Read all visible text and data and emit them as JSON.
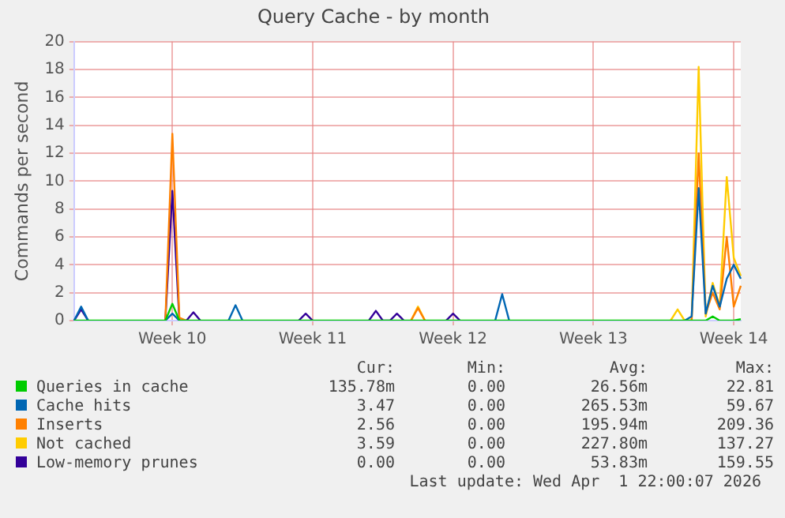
{
  "chart_data": {
    "type": "line",
    "title": "Query Cache - by month",
    "ylabel": "Commands per second",
    "categories": [
      null,
      null,
      null,
      null,
      null,
      null,
      null,
      null,
      null,
      null,
      null,
      null,
      null,
      null,
      "Week 10",
      null,
      null,
      null,
      null,
      null,
      null,
      null,
      null,
      null,
      null,
      null,
      null,
      null,
      null,
      null,
      null,
      null,
      null,
      null,
      "Week 11",
      null,
      null,
      null,
      null,
      null,
      null,
      null,
      null,
      null,
      null,
      null,
      null,
      null,
      null,
      null,
      null,
      null,
      null,
      null,
      "Week 12",
      null,
      null,
      null,
      null,
      null,
      null,
      null,
      null,
      null,
      null,
      null,
      null,
      null,
      null,
      null,
      null,
      null,
      null,
      null,
      "Week 13",
      null,
      null,
      null,
      null,
      null,
      null,
      null,
      null,
      null,
      null,
      null,
      null,
      null,
      null,
      null,
      null,
      null,
      null,
      null,
      "Week 14",
      null
    ],
    "ylim": [
      0,
      20
    ],
    "yticks": [
      0,
      2,
      4,
      6,
      8,
      10,
      12,
      14,
      16,
      18,
      20
    ],
    "grid": true,
    "legend": "bottom",
    "marker": "none",
    "line_style": "solid",
    "series": [
      {
        "name": "Queries in cache",
        "color": "#00cc00",
        "values": [
          0,
          0,
          0,
          0,
          0,
          0,
          0,
          0,
          0,
          0,
          0,
          0,
          0,
          0,
          1.2,
          0,
          0,
          0,
          0,
          0,
          0,
          0,
          0,
          0,
          0,
          0,
          0,
          0,
          0,
          0,
          0,
          0,
          0,
          0,
          0,
          0,
          0,
          0,
          0,
          0,
          0,
          0,
          0,
          0,
          0,
          0,
          0,
          0,
          0,
          0,
          0,
          0,
          0,
          0,
          0,
          0,
          0,
          0,
          0,
          0,
          0,
          0,
          0,
          0,
          0,
          0,
          0,
          0,
          0,
          0,
          0,
          0,
          0,
          0,
          0,
          0,
          0,
          0,
          0,
          0,
          0,
          0,
          0,
          0,
          0,
          0,
          0,
          0,
          0,
          0,
          0,
          0.3,
          0,
          0,
          0,
          0.1
        ]
      },
      {
        "name": "Cache hits",
        "color": "#0066b3",
        "values": [
          0,
          1.0,
          0,
          null,
          null,
          null,
          null,
          null,
          null,
          null,
          null,
          null,
          null,
          0,
          0.5,
          0,
          null,
          null,
          null,
          null,
          null,
          null,
          0,
          1.1,
          0,
          null,
          null,
          null,
          null,
          null,
          null,
          null,
          null,
          null,
          null,
          null,
          null,
          null,
          null,
          null,
          null,
          null,
          null,
          null,
          null,
          null,
          null,
          null,
          null,
          null,
          null,
          null,
          null,
          null,
          null,
          null,
          null,
          null,
          null,
          null,
          0,
          1.9,
          0,
          null,
          null,
          null,
          null,
          null,
          null,
          null,
          null,
          null,
          null,
          null,
          null,
          null,
          null,
          null,
          null,
          null,
          null,
          null,
          null,
          null,
          null,
          null,
          null,
          0,
          0.3,
          9.5,
          0.5,
          2.5,
          1.0,
          3.0,
          4.0,
          3.0
        ]
      },
      {
        "name": "Inserts",
        "color": "#ff8000",
        "values": [
          null,
          null,
          null,
          null,
          null,
          null,
          null,
          null,
          null,
          null,
          null,
          null,
          null,
          0,
          13.4,
          0.2,
          0,
          null,
          null,
          null,
          null,
          null,
          null,
          null,
          null,
          null,
          null,
          null,
          null,
          null,
          null,
          null,
          null,
          null,
          null,
          null,
          null,
          null,
          null,
          null,
          null,
          null,
          null,
          null,
          null,
          null,
          null,
          null,
          0,
          0.9,
          0,
          null,
          null,
          null,
          null,
          null,
          null,
          null,
          null,
          null,
          null,
          null,
          null,
          null,
          null,
          null,
          null,
          null,
          null,
          null,
          null,
          null,
          null,
          null,
          null,
          null,
          null,
          null,
          null,
          null,
          null,
          null,
          null,
          null,
          null,
          null,
          null,
          null,
          0,
          12.0,
          0.5,
          2.0,
          0.8,
          6.0,
          1.0,
          2.5
        ]
      },
      {
        "name": "Not cached",
        "color": "#ffcc00",
        "values": [
          null,
          null,
          null,
          null,
          null,
          null,
          null,
          null,
          null,
          null,
          null,
          null,
          null,
          null,
          null,
          null,
          null,
          null,
          null,
          null,
          null,
          null,
          null,
          null,
          null,
          null,
          null,
          null,
          null,
          null,
          null,
          null,
          null,
          null,
          null,
          null,
          null,
          null,
          null,
          null,
          null,
          null,
          null,
          null,
          null,
          null,
          null,
          null,
          0,
          1.0,
          0,
          null,
          null,
          null,
          null,
          null,
          null,
          null,
          null,
          null,
          null,
          null,
          null,
          null,
          null,
          null,
          null,
          null,
          null,
          null,
          null,
          null,
          null,
          null,
          null,
          null,
          null,
          null,
          null,
          null,
          null,
          null,
          null,
          null,
          null,
          0,
          0.8,
          0,
          0,
          18.2,
          0.3,
          2.7,
          1.0,
          10.3,
          4.5,
          3.2
        ]
      },
      {
        "name": "Low-memory prunes",
        "color": "#330099",
        "values": [
          0,
          0.8,
          0,
          null,
          null,
          null,
          null,
          null,
          null,
          null,
          null,
          null,
          null,
          0,
          9.3,
          0,
          0,
          0.6,
          0,
          null,
          null,
          null,
          null,
          null,
          null,
          null,
          null,
          null,
          null,
          null,
          null,
          null,
          0,
          0.5,
          0,
          null,
          null,
          null,
          null,
          null,
          null,
          null,
          0,
          0.7,
          0,
          0,
          0.5,
          0,
          null,
          null,
          null,
          null,
          null,
          0,
          0.5,
          0,
          null,
          null,
          null,
          null,
          null,
          null,
          null,
          null,
          null,
          null,
          null,
          null,
          null,
          null,
          null,
          null,
          null,
          null,
          null,
          null,
          null,
          null,
          null,
          null,
          null,
          null,
          null,
          null,
          null,
          null,
          null,
          null,
          null,
          null,
          null,
          null,
          null,
          null,
          null,
          null
        ]
      }
    ],
    "annotations": [
      "Cur:",
      "Min:",
      "Avg:",
      "Max:",
      "135.78m",
      "0.00",
      "26.56m",
      "22.81",
      "3.47",
      "0.00",
      "265.53m",
      "59.67",
      "2.56",
      "0.00",
      "195.94m",
      "209.36",
      "3.59",
      "0.00",
      "227.80m",
      "137.27",
      "0.00",
      "0.00",
      "53.83m",
      "159.55",
      "Last update: Wed Apr  1 22:00:07 2026"
    ]
  }
}
